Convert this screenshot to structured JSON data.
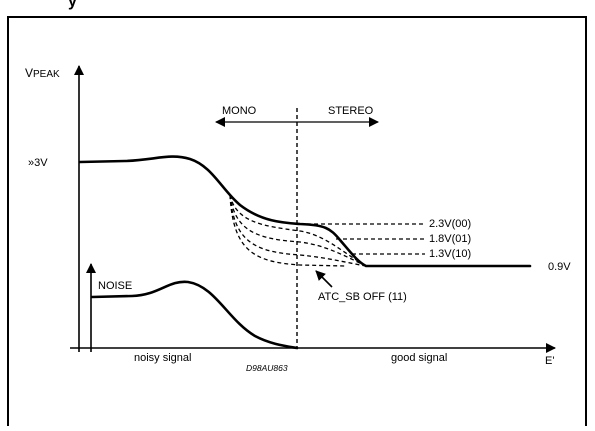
{
  "header_fragment": "y",
  "diagram": {
    "y_axis_label_v": "V",
    "y_axis_label_sub": "PEAK",
    "x_axis_label": "E'",
    "level_3v": "»3V",
    "noise_label": "NOISE",
    "mono_label": "MONO",
    "stereo_label": "STEREO",
    "thresholds": [
      "2.3V(00)",
      "1.8V(01)",
      "1.3V(10)"
    ],
    "floor_label": "0.9V",
    "atc_label": "ATC_SB OFF (11)",
    "noisy_label": "noisy signal",
    "good_label": "good signal",
    "ref_code": "D98AU863"
  }
}
